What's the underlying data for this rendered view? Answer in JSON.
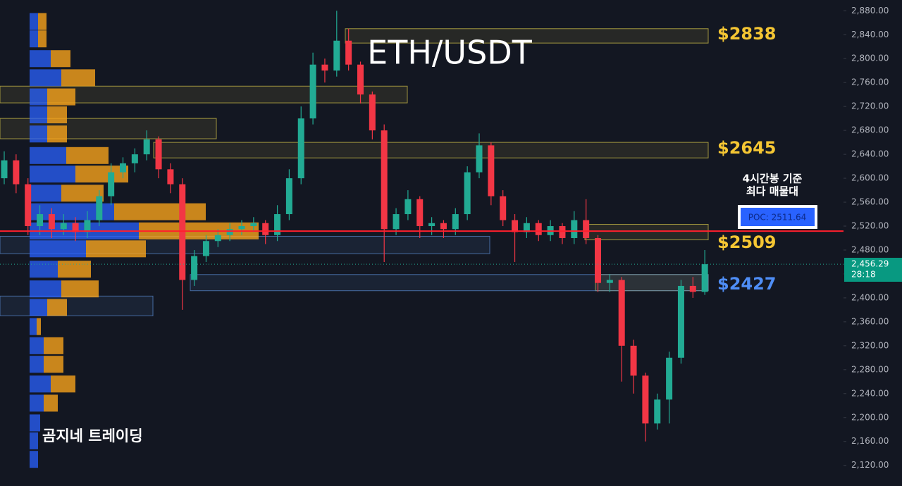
{
  "chart_data": {
    "type": "candlestick",
    "title": "ETH/USDT",
    "watermark": "곰지네 트레이딩",
    "up_color": "#22ab94",
    "down_color": "#f23645",
    "open": [
      2600,
      2630,
      2590,
      2520,
      2540,
      2515,
      2525,
      2510,
      2530,
      2570,
      2610,
      2625,
      2640,
      2665,
      2615,
      2590,
      2430,
      2470,
      2495,
      2505,
      2515,
      2520,
      2525,
      2505,
      2540,
      2600,
      2700,
      2790,
      2780,
      2830,
      2790,
      2740,
      2680,
      2515,
      2540,
      2565,
      2520,
      2525,
      2515,
      2540,
      2610,
      2655,
      2570,
      2530,
      2510,
      2525,
      2505,
      2520,
      2500,
      2530,
      2500,
      2425,
      2430,
      2320,
      2270,
      2190,
      2230,
      2300,
      2420,
      2410
    ],
    "high": [
      2645,
      2640,
      2600,
      2555,
      2550,
      2540,
      2535,
      2545,
      2580,
      2625,
      2635,
      2650,
      2680,
      2670,
      2625,
      2600,
      2480,
      2505,
      2515,
      2525,
      2530,
      2535,
      2530,
      2555,
      2615,
      2720,
      2810,
      2800,
      2880,
      2850,
      2795,
      2745,
      2690,
      2550,
      2580,
      2570,
      2535,
      2530,
      2550,
      2620,
      2675,
      2660,
      2580,
      2540,
      2535,
      2530,
      2530,
      2525,
      2545,
      2565,
      2505,
      2440,
      2435,
      2330,
      2275,
      2240,
      2310,
      2430,
      2435,
      2480
    ],
    "low": [
      2590,
      2575,
      2505,
      2505,
      2500,
      2505,
      2495,
      2500,
      2520,
      2555,
      2600,
      2610,
      2630,
      2600,
      2575,
      2380,
      2420,
      2460,
      2485,
      2495,
      2505,
      2510,
      2490,
      2495,
      2530,
      2590,
      2690,
      2760,
      2770,
      2780,
      2725,
      2665,
      2460,
      2505,
      2530,
      2500,
      2505,
      2500,
      2505,
      2530,
      2600,
      2555,
      2520,
      2460,
      2500,
      2495,
      2495,
      2490,
      2490,
      2490,
      2410,
      2410,
      2260,
      2240,
      2160,
      2180,
      2190,
      2290,
      2400,
      2405
    ],
    "close": [
      2630,
      2590,
      2520,
      2540,
      2515,
      2525,
      2510,
      2530,
      2570,
      2610,
      2625,
      2640,
      2665,
      2615,
      2590,
      2430,
      2470,
      2495,
      2505,
      2515,
      2520,
      2525,
      2505,
      2540,
      2600,
      2700,
      2790,
      2780,
      2830,
      2790,
      2740,
      2680,
      2515,
      2540,
      2565,
      2520,
      2525,
      2515,
      2540,
      2610,
      2655,
      2570,
      2530,
      2510,
      2525,
      2505,
      2520,
      2500,
      2530,
      2500,
      2425,
      2430,
      2320,
      2270,
      2190,
      2230,
      2300,
      2420,
      2410,
      2456.29
    ],
    "ylim": [
      2085.5,
      2898
    ],
    "yticks": [
      {
        "value": 2120,
        "label": "2,120.00"
      },
      {
        "value": 2160,
        "label": "2,160.00"
      },
      {
        "value": 2200,
        "label": "2,200.00"
      },
      {
        "value": 2240,
        "label": "2,240.00"
      },
      {
        "value": 2280,
        "label": "2,280.00"
      },
      {
        "value": 2320,
        "label": "2,320.00"
      },
      {
        "value": 2360,
        "label": "2,360.00"
      },
      {
        "value": 2400,
        "label": "2,400.00"
      },
      {
        "value": 2440,
        "label": "2,440.00"
      },
      {
        "value": 2480,
        "label": "2,480.00"
      },
      {
        "value": 2520,
        "label": "2,520.00"
      },
      {
        "value": 2560,
        "label": "2,560.00"
      },
      {
        "value": 2600,
        "label": "2,600.00"
      },
      {
        "value": 2640,
        "label": "2,640.00"
      },
      {
        "value": 2680,
        "label": "2,680.00"
      },
      {
        "value": 2720,
        "label": "2,720.00"
      },
      {
        "value": 2760,
        "label": "2,760.00"
      },
      {
        "value": 2800,
        "label": "2,800.00"
      },
      {
        "value": 2840,
        "label": "2,840.00"
      },
      {
        "value": 2880,
        "label": "2,880.00"
      }
    ],
    "zones": [
      {
        "top": 2850,
        "bottom": 2826,
        "color": "#d9c84a",
        "label": "$2838",
        "label_color": "#f5c633"
      },
      {
        "top": 2754,
        "bottom": 2726,
        "color": "#d9c84a"
      },
      {
        "top": 2700,
        "bottom": 2666,
        "color": "#d9c84a"
      },
      {
        "top": 2660,
        "bottom": 2634,
        "color": "#d9c84a",
        "label": "$2645",
        "label_color": "#f5c633"
      },
      {
        "top": 2523,
        "bottom": 2497,
        "color": "#d9c84a",
        "label": "$2509",
        "label_color": "#f5c633"
      },
      {
        "top": 2503,
        "bottom": 2474,
        "color": "#5b8fd6"
      },
      {
        "top": 2439,
        "bottom": 2412,
        "color": "#d9c84a",
        "label": "$2427",
        "label_color": "#4f8ef7"
      },
      {
        "top": 2439,
        "bottom": 2412,
        "color": "#5b8fd6"
      },
      {
        "top": 2403,
        "bottom": 2370,
        "color": "#5b8fd6"
      }
    ],
    "volume_profile": {
      "prices": [
        2862,
        2833,
        2800,
        2768,
        2736,
        2706,
        2674,
        2638,
        2607,
        2575,
        2544,
        2512,
        2482,
        2448,
        2415,
        2384,
        2352,
        2320,
        2289,
        2256,
        2224,
        2191,
        2161,
        2130
      ],
      "buy": [
        12,
        12,
        30,
        45,
        25,
        25,
        25,
        52,
        65,
        45,
        120,
        155,
        80,
        40,
        45,
        25,
        10,
        20,
        20,
        30,
        20,
        15,
        12,
        12
      ],
      "sell": [
        12,
        12,
        28,
        48,
        40,
        28,
        28,
        60,
        75,
        60,
        130,
        170,
        85,
        47,
        53,
        28,
        6,
        28,
        28,
        35,
        20,
        0,
        0,
        0
      ]
    },
    "poc": 2511.64,
    "poc_label": "POC: 2511.64",
    "poc_note": [
      "4시간봉 기준",
      "최다 매물대"
    ],
    "last_price": {
      "value": 2456.29,
      "label": "2,456.29"
    },
    "countdown": "28:18"
  }
}
